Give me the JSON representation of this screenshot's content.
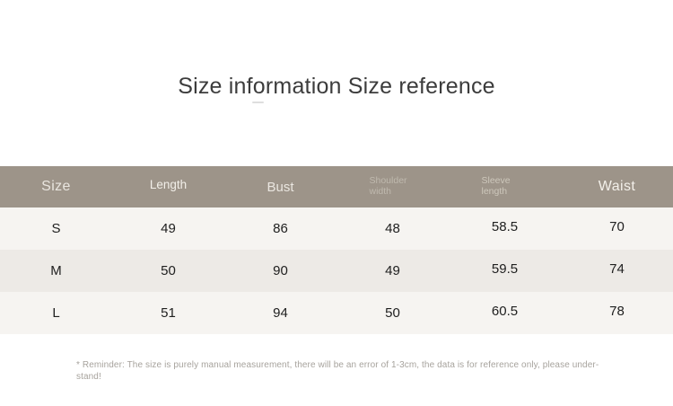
{
  "title": {
    "text": "Size information Size reference"
  },
  "table": {
    "header_bg": "#9d9489",
    "row_colors": [
      "#f6f4f1",
      "#edeae6",
      "#f6f4f1"
    ],
    "columns": [
      {
        "key": "size",
        "label": "Size"
      },
      {
        "key": "length",
        "label": "Length"
      },
      {
        "key": "bust",
        "label": "Bust"
      },
      {
        "key": "shoulder_width",
        "label": "Shoulder width"
      },
      {
        "key": "sleeve_length",
        "label": "Sleeve length"
      },
      {
        "key": "waist",
        "label": "Waist"
      }
    ],
    "rows": [
      {
        "size": "S",
        "length": "49",
        "bust": "86",
        "shoulder_width": "48",
        "sleeve_length": "58.5",
        "waist": "70"
      },
      {
        "size": "M",
        "length": "50",
        "bust": "90",
        "shoulder_width": "49",
        "sleeve_length": "59.5",
        "waist": "74"
      },
      {
        "size": "L",
        "length": "51",
        "bust": "94",
        "shoulder_width": "50",
        "sleeve_length": "60.5",
        "waist": "78"
      }
    ]
  },
  "footnote": {
    "line1": "* Reminder: The size is purely manual measurement, there will be an error of 1-3cm, the data is for reference only, please under-",
    "line2": "stand!"
  }
}
